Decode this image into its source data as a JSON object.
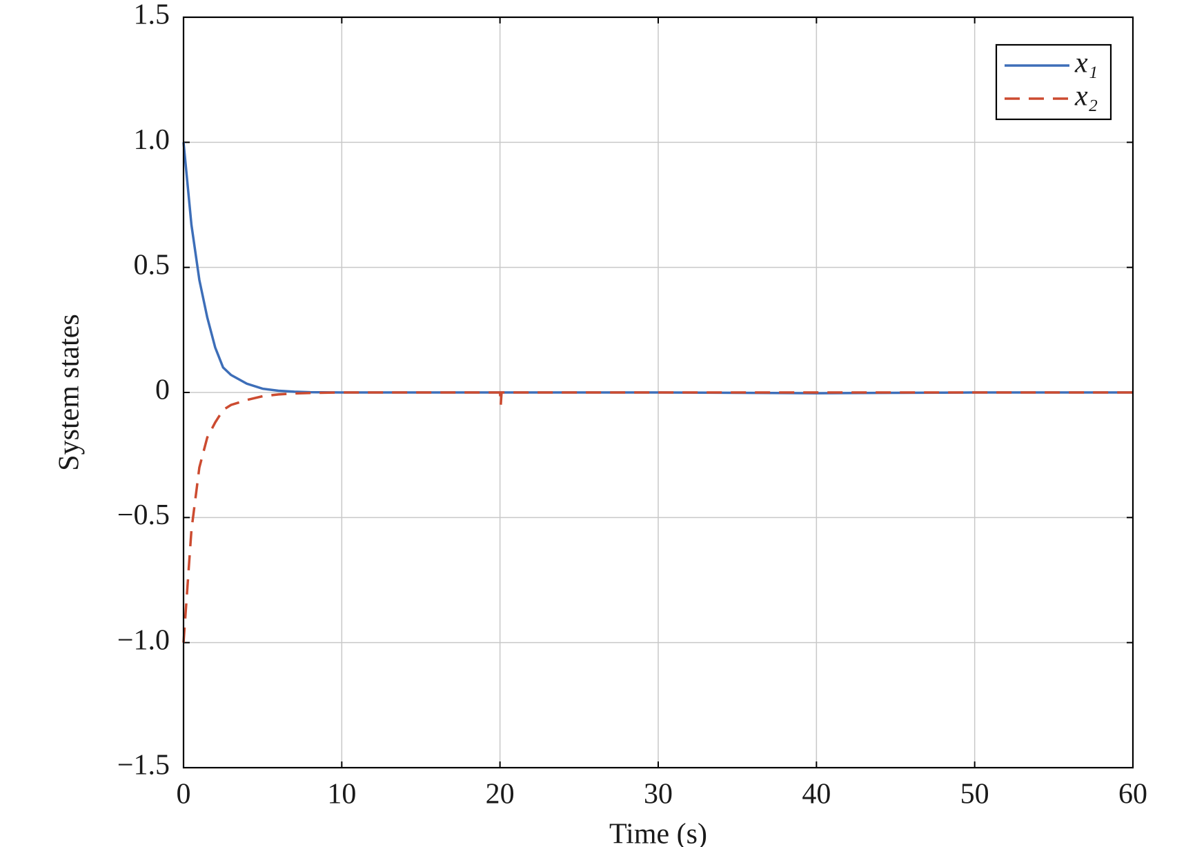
{
  "chart_data": {
    "type": "line",
    "x_label": "Time (s)",
    "y_label": "System states",
    "x": [
      0,
      0.5,
      1,
      1.5,
      2,
      2.5,
      3,
      4,
      5,
      6,
      7,
      8,
      10,
      20,
      20.05,
      20.1,
      30,
      40,
      50,
      60
    ],
    "series": [
      {
        "name": "x₁",
        "color": "#3d6eb8",
        "line_style": "solid",
        "values": [
          1.0,
          0.67,
          0.45,
          0.3,
          0.18,
          0.1,
          0.07,
          0.035,
          0.015,
          0.007,
          0.003,
          0.001,
          0,
          0,
          0,
          0,
          0,
          -0.003,
          0,
          0
        ]
      },
      {
        "name": "x₂",
        "color": "#cc4b30",
        "line_style": "dashed",
        "values": [
          -1.0,
          -0.55,
          -0.3,
          -0.18,
          -0.12,
          -0.07,
          -0.05,
          -0.03,
          -0.015,
          -0.008,
          -0.004,
          -0.002,
          0,
          0,
          -0.05,
          0,
          0,
          0,
          0,
          0
        ]
      }
    ],
    "xlim": [
      0,
      60
    ],
    "xticks": [
      0,
      10,
      20,
      30,
      40,
      50,
      60
    ],
    "ylim": [
      -1.5,
      1.5
    ],
    "yticks": [
      {
        "value": -1.5,
        "label": "−1.5"
      },
      {
        "value": -1.0,
        "label": "−1.0"
      },
      {
        "value": -0.5,
        "label": "−0.5"
      },
      0,
      {
        "value": 0.5,
        "label": "0.5"
      },
      {
        "value": 1.0,
        "label": "1.0"
      },
      {
        "value": 1.5,
        "label": "1.5"
      }
    ],
    "grid": true,
    "legend": "upper right"
  }
}
